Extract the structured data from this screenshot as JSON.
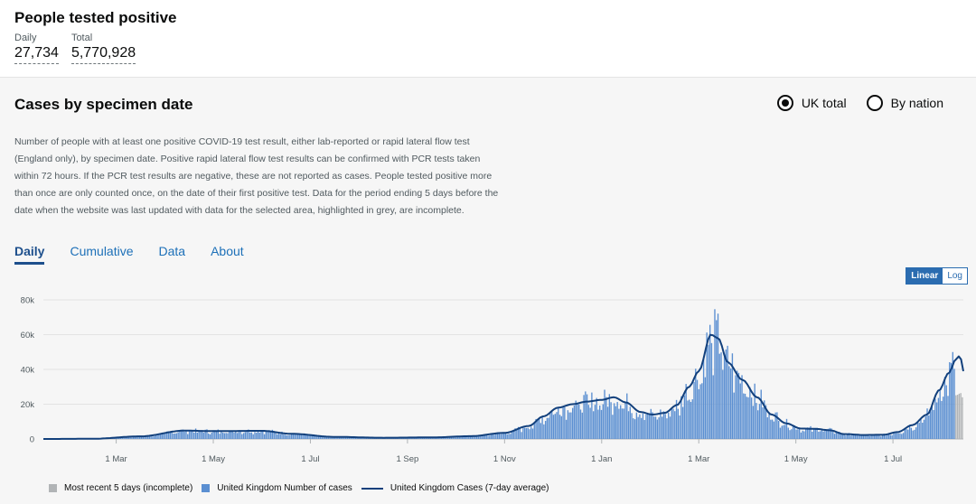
{
  "headline": {
    "title": "People tested positive",
    "daily_label": "Daily",
    "daily_value": "27,734",
    "total_label": "Total",
    "total_value": "5,770,928"
  },
  "card": {
    "title": "Cases by specimen date",
    "radio_uk": "UK total",
    "radio_nation": "By nation",
    "selected": "UK total",
    "description": "Number of people with at least one positive COVID-19 test result, either lab-reported or rapid lateral flow test (England only), by specimen date. Positive rapid lateral flow test results can be confirmed with PCR tests taken within 72 hours. If the PCR test results are negative, these are not reported as cases. People tested positive more than once are only counted once, on the date of their first positive test. Data for the period ending 5 days before the date when the website was last updated with data for the selected area, highlighted in grey, are incomplete.",
    "tabs": [
      "Daily",
      "Cumulative",
      "Data",
      "About"
    ],
    "active_tab": "Daily",
    "scale_linear": "Linear",
    "scale_log": "Log"
  },
  "chart_data": {
    "type": "bar",
    "y_tick_labels": [
      "0",
      "20k",
      "40k",
      "60k",
      "80k"
    ],
    "ylim": [
      0,
      80000
    ],
    "x_tick_labels": [
      "1 Mar",
      "1 May",
      "1 Jul",
      "1 Sep",
      "1 Nov",
      "1 Jan",
      "1 Mar",
      "1 May",
      "1 Jul"
    ],
    "x_tick_months": [
      1,
      3,
      5,
      7,
      9,
      11,
      13,
      15,
      17
    ],
    "x_range_months": [
      -0.5,
      18.45
    ],
    "grid": true,
    "avg_anchors_month_value": [
      [
        -0.5,
        0
      ],
      [
        0.5,
        100
      ],
      [
        1.5,
        1500
      ],
      [
        2.4,
        4800
      ],
      [
        3.0,
        4500
      ],
      [
        4.0,
        4700
      ],
      [
        4.6,
        3000
      ],
      [
        5.5,
        1200
      ],
      [
        6.5,
        700
      ],
      [
        7.5,
        900
      ],
      [
        8.3,
        1600
      ],
      [
        9.0,
        3500
      ],
      [
        9.5,
        7500
      ],
      [
        9.8,
        13000
      ],
      [
        10.1,
        18000
      ],
      [
        10.4,
        20000
      ],
      [
        10.7,
        21500
      ],
      [
        11.0,
        22500
      ],
      [
        11.25,
        24000
      ],
      [
        11.5,
        21000
      ],
      [
        11.8,
        15500
      ],
      [
        12.05,
        14000
      ],
      [
        12.3,
        15000
      ],
      [
        12.55,
        19500
      ],
      [
        12.8,
        30000
      ],
      [
        13.0,
        39000
      ],
      [
        13.25,
        60000
      ],
      [
        13.4,
        58000
      ],
      [
        13.6,
        44000
      ],
      [
        13.9,
        34000
      ],
      [
        14.2,
        24000
      ],
      [
        14.5,
        14000
      ],
      [
        14.8,
        9000
      ],
      [
        15.1,
        6000
      ],
      [
        15.4,
        5800
      ],
      [
        15.7,
        5000
      ],
      [
        16.0,
        2800
      ],
      [
        16.4,
        2300
      ],
      [
        16.8,
        2400
      ],
      [
        17.1,
        4000
      ],
      [
        17.4,
        8000
      ],
      [
        17.7,
        14000
      ],
      [
        17.95,
        28000
      ],
      [
        18.15,
        38000
      ],
      [
        18.3,
        46000
      ],
      [
        18.38,
        48000
      ],
      [
        18.45,
        39000
      ]
    ],
    "incomplete_last_days": 5,
    "legend": [
      {
        "name": "Most recent 5 days (incomplete)",
        "color": "#b1b4b6"
      },
      {
        "name": "United Kingdom Number of cases",
        "color": "#5b8fd1"
      },
      {
        "name": "United Kingdom Cases (7-day average)",
        "color": "#12407c"
      }
    ]
  }
}
